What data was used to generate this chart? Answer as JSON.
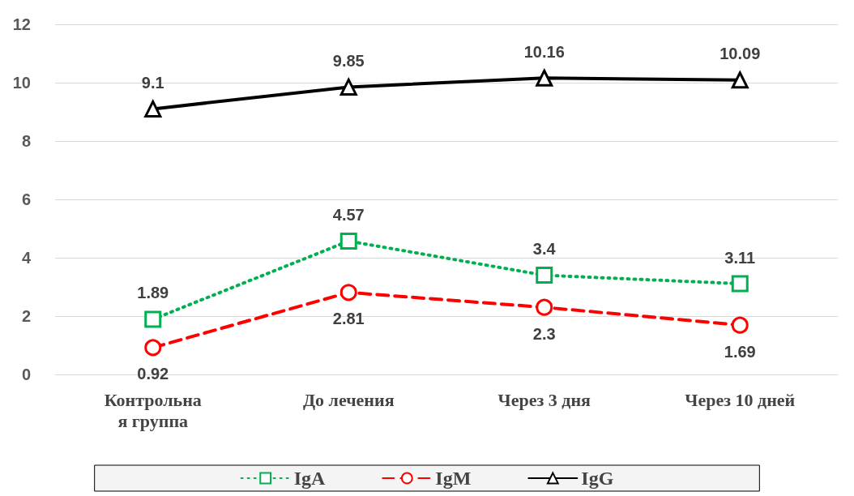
{
  "chart_data": {
    "type": "line",
    "categories": [
      "Контрольная группа",
      "До лечения",
      "Через 3 дня",
      "Через 10 дней"
    ],
    "series": [
      {
        "name": "IgA",
        "color": "#00b050",
        "values": [
          1.89,
          4.57,
          3.4,
          3.11
        ],
        "marker": "square",
        "line_style": "dotted"
      },
      {
        "name": "IgM",
        "color": "#ff0000",
        "values": [
          0.92,
          2.81,
          2.3,
          1.69
        ],
        "marker": "circle",
        "line_style": "dashed"
      },
      {
        "name": "IgG",
        "color": "#000000",
        "values": [
          9.1,
          9.85,
          10.16,
          10.09
        ],
        "marker": "triangle",
        "line_style": "solid"
      }
    ],
    "ylim": [
      0,
      12
    ],
    "yticks": [
      0,
      2,
      4,
      6,
      8,
      10,
      12
    ],
    "grid": "y",
    "legend": "bottom",
    "data_labels": true
  }
}
